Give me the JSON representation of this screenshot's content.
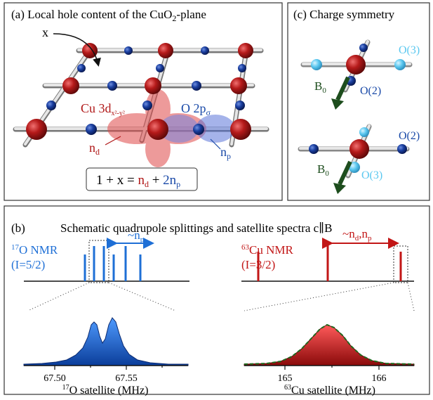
{
  "panel_a": {
    "title": "(a)  Local hole content of the CuO",
    "title_sub": "2",
    "title_end": "-plane",
    "x_label": "x",
    "cu_label": "Cu 3d",
    "cu_sub": "x²-y²",
    "o_label": "O 2p",
    "o_sub": "σ",
    "nd_label": "n",
    "nd_sub": "d",
    "np_label": "n",
    "np_sub": "p",
    "eq_left": "1 + x = ",
    "eq_nd": "n",
    "eq_nd_sub": "d",
    "eq_plus": " + ",
    "eq_2np": "2n",
    "eq_2np_sub": "p"
  },
  "panel_c": {
    "title": "(c)  Charge symmetry",
    "b0": "B",
    "b0_sub": "0",
    "o3": "O(3)",
    "o2": "O(2)"
  },
  "panel_b": {
    "title": "(b)",
    "subtitle": "Schematic quadrupole splittings and satellite spectra c∥B",
    "o_nmr_sup": "17",
    "o_nmr": "O NMR",
    "o_spin": "(I=5/2)",
    "o_arrow_label": "~n",
    "o_arrow_sub": "p",
    "cu_nmr_sup": "63",
    "cu_nmr": "Cu NMR",
    "cu_spin": "(I=3/2)",
    "cu_arrow_label": "~n",
    "cu_arrow_sub": "d",
    "cu_arrow_end": ",n",
    "cu_arrow_sub2": "p",
    "o_xticks": [
      "67.50",
      "67.55"
    ],
    "cu_xticks": [
      "165",
      "166"
    ],
    "o_xlabel_sup": "17",
    "o_xlabel": "O satellite (MHz)",
    "cu_xlabel_sup": "63",
    "cu_xlabel": "Cu satellite (MHz)"
  },
  "colors": {
    "cu_red": "#b01717",
    "o_blue": "#1a4aa8",
    "light_blue": "#5bc8f0",
    "nmr_blue": "#1e6fd6",
    "nmr_red": "#c21616",
    "field_green": "#1d4d1d"
  }
}
